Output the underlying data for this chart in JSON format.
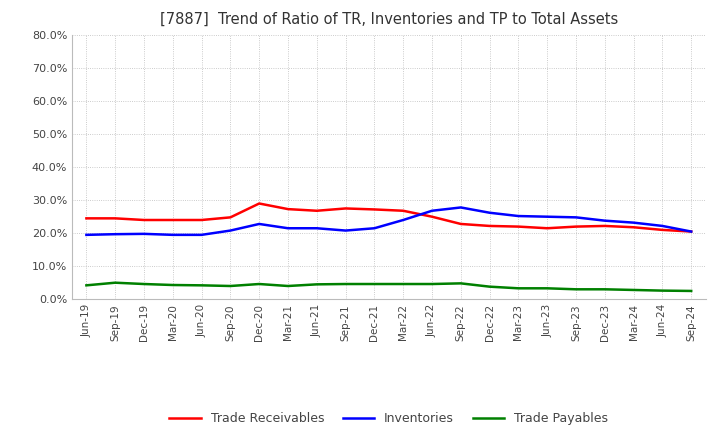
{
  "title": "[7887]  Trend of Ratio of TR, Inventories and TP to Total Assets",
  "x_labels": [
    "Jun-19",
    "Sep-19",
    "Dec-19",
    "Mar-20",
    "Jun-20",
    "Sep-20",
    "Dec-20",
    "Mar-21",
    "Jun-21",
    "Sep-21",
    "Dec-21",
    "Mar-22",
    "Jun-22",
    "Sep-22",
    "Dec-22",
    "Mar-23",
    "Jun-23",
    "Sep-23",
    "Dec-23",
    "Mar-24",
    "Jun-24",
    "Sep-24"
  ],
  "trade_receivables": [
    0.245,
    0.245,
    0.24,
    0.24,
    0.24,
    0.248,
    0.29,
    0.273,
    0.268,
    0.275,
    0.272,
    0.268,
    0.25,
    0.228,
    0.222,
    0.22,
    0.215,
    0.22,
    0.222,
    0.218,
    0.21,
    0.205
  ],
  "inventories": [
    0.195,
    0.197,
    0.198,
    0.195,
    0.195,
    0.208,
    0.228,
    0.215,
    0.215,
    0.208,
    0.215,
    0.24,
    0.268,
    0.278,
    0.262,
    0.252,
    0.25,
    0.248,
    0.238,
    0.232,
    0.222,
    0.205
  ],
  "trade_payables": [
    0.042,
    0.05,
    0.046,
    0.043,
    0.042,
    0.04,
    0.046,
    0.04,
    0.045,
    0.046,
    0.046,
    0.046,
    0.046,
    0.048,
    0.038,
    0.033,
    0.033,
    0.03,
    0.03,
    0.028,
    0.026,
    0.025
  ],
  "tr_color": "#ff0000",
  "inv_color": "#0000ff",
  "tp_color": "#008000",
  "ylim": [
    0.0,
    0.8
  ],
  "yticks": [
    0.0,
    0.1,
    0.2,
    0.3,
    0.4,
    0.5,
    0.6,
    0.7,
    0.8
  ],
  "legend_labels": [
    "Trade Receivables",
    "Inventories",
    "Trade Payables"
  ],
  "background_color": "#ffffff",
  "grid_color": "#bbbbbb"
}
